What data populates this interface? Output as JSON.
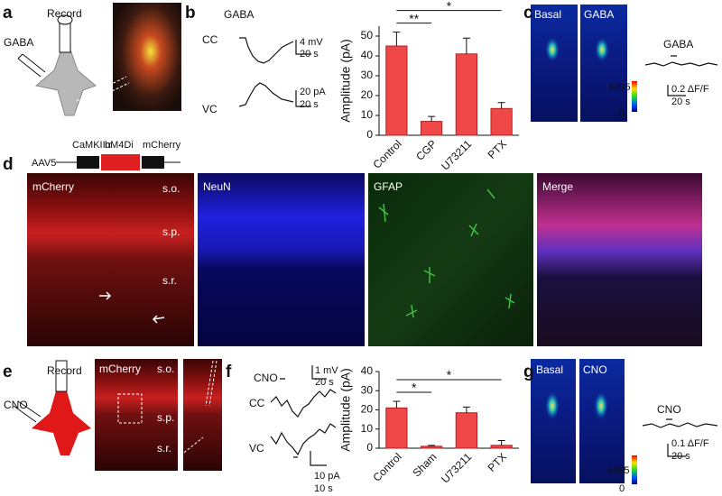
{
  "panels": {
    "a": {
      "label": "a",
      "drug": "GABA",
      "record": "Record"
    },
    "b": {
      "label": "b",
      "drug": "GABA",
      "cc": "CC",
      "vc": "VC",
      "cc_scale": [
        "4 mV",
        "20 s"
      ],
      "vc_scale": [
        "20 pA",
        "20 s"
      ]
    },
    "c": {
      "label": "c",
      "images": [
        "Basal",
        "GABA"
      ],
      "colorbar": [
        "4095",
        "0"
      ],
      "drug": "GABA",
      "scale": [
        "0.2 ΔF/F",
        "20 s"
      ]
    },
    "d": {
      "label": "d",
      "construct": [
        "CaMKIIα",
        "hM4Di",
        "mCherry"
      ],
      "vector": "AAV5",
      "channels": [
        "mCherry",
        "NeuN",
        "GFAP",
        "Merge"
      ],
      "layers": [
        "s.o.",
        "s.p.",
        "s.r."
      ]
    },
    "e": {
      "label": "e",
      "drug": "CNO",
      "record": "Record",
      "image": "mCherry",
      "layers": [
        "s.o.",
        "s.p.",
        "s.r."
      ]
    },
    "f": {
      "label": "f",
      "drug": "CNO",
      "cc": "CC",
      "vc": "VC",
      "cc_scale": [
        "1 mV",
        "20 s"
      ],
      "vc_scale": [
        "10 pA",
        "10 s"
      ]
    },
    "g": {
      "label": "g",
      "images": [
        "Basal",
        "CNO"
      ],
      "colorbar": [
        "4095",
        "0"
      ],
      "drug": "CNO",
      "scale": [
        "0.1 ΔF/F",
        "20 s"
      ]
    }
  },
  "chart_data": [
    {
      "type": "bar",
      "ylabel": "Amplitude (pA)",
      "categories": [
        "Control",
        "CGP",
        "U73211",
        "PTX"
      ],
      "values": [
        45,
        7,
        41,
        13.5
      ],
      "errors": [
        7,
        2.5,
        8,
        3
      ],
      "color": "#f04848",
      "ylim": [
        0,
        55
      ],
      "yticks": [
        0,
        10,
        20,
        30,
        40,
        50
      ],
      "comparisons": [
        {
          "label": "**",
          "groups": [
            "Control",
            "CGP"
          ]
        },
        {
          "label": "*",
          "groups": [
            "Control",
            "PTX"
          ]
        }
      ]
    },
    {
      "type": "bar",
      "ylabel": "Amplitude (pA)",
      "categories": [
        "Control",
        "Sham",
        "U73211",
        "PTX"
      ],
      "values": [
        21,
        1,
        18.5,
        1.5
      ],
      "errors": [
        3.5,
        0.5,
        3,
        2.5
      ],
      "color": "#f04848",
      "ylim": [
        0,
        40
      ],
      "yticks": [
        0,
        10,
        20,
        30,
        40
      ],
      "comparisons": [
        {
          "label": "*",
          "groups": [
            "Control",
            "Sham"
          ]
        },
        {
          "label": "*",
          "groups": [
            "Control",
            "PTX"
          ]
        }
      ]
    }
  ]
}
